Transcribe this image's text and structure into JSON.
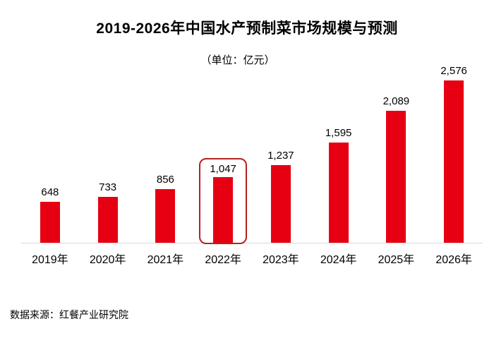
{
  "chart_data": {
    "type": "bar",
    "title": "2019-2026年中国水产预制菜市场规模与预测",
    "unit_label": "（单位：亿元）",
    "categories": [
      "2019年",
      "2020年",
      "2021年",
      "2022年",
      "2023年",
      "2024年",
      "2025年",
      "2026年"
    ],
    "values": [
      648,
      733,
      856,
      1047,
      1237,
      1595,
      2089,
      2576
    ],
    "value_labels": [
      "648",
      "733",
      "856",
      "1,047",
      "1,237",
      "1,595",
      "2,089",
      "2,576"
    ],
    "highlighted_index": 3,
    "bar_color": "#e60012",
    "highlight_border_color": "#b22222",
    "axis_line_color": "#d9d9d9",
    "xlabel": "",
    "ylabel": "",
    "ylim": [
      0,
      2576
    ],
    "grid": false,
    "legend": "none"
  },
  "footer": {
    "source": "数据来源：红餐产业研究院"
  }
}
